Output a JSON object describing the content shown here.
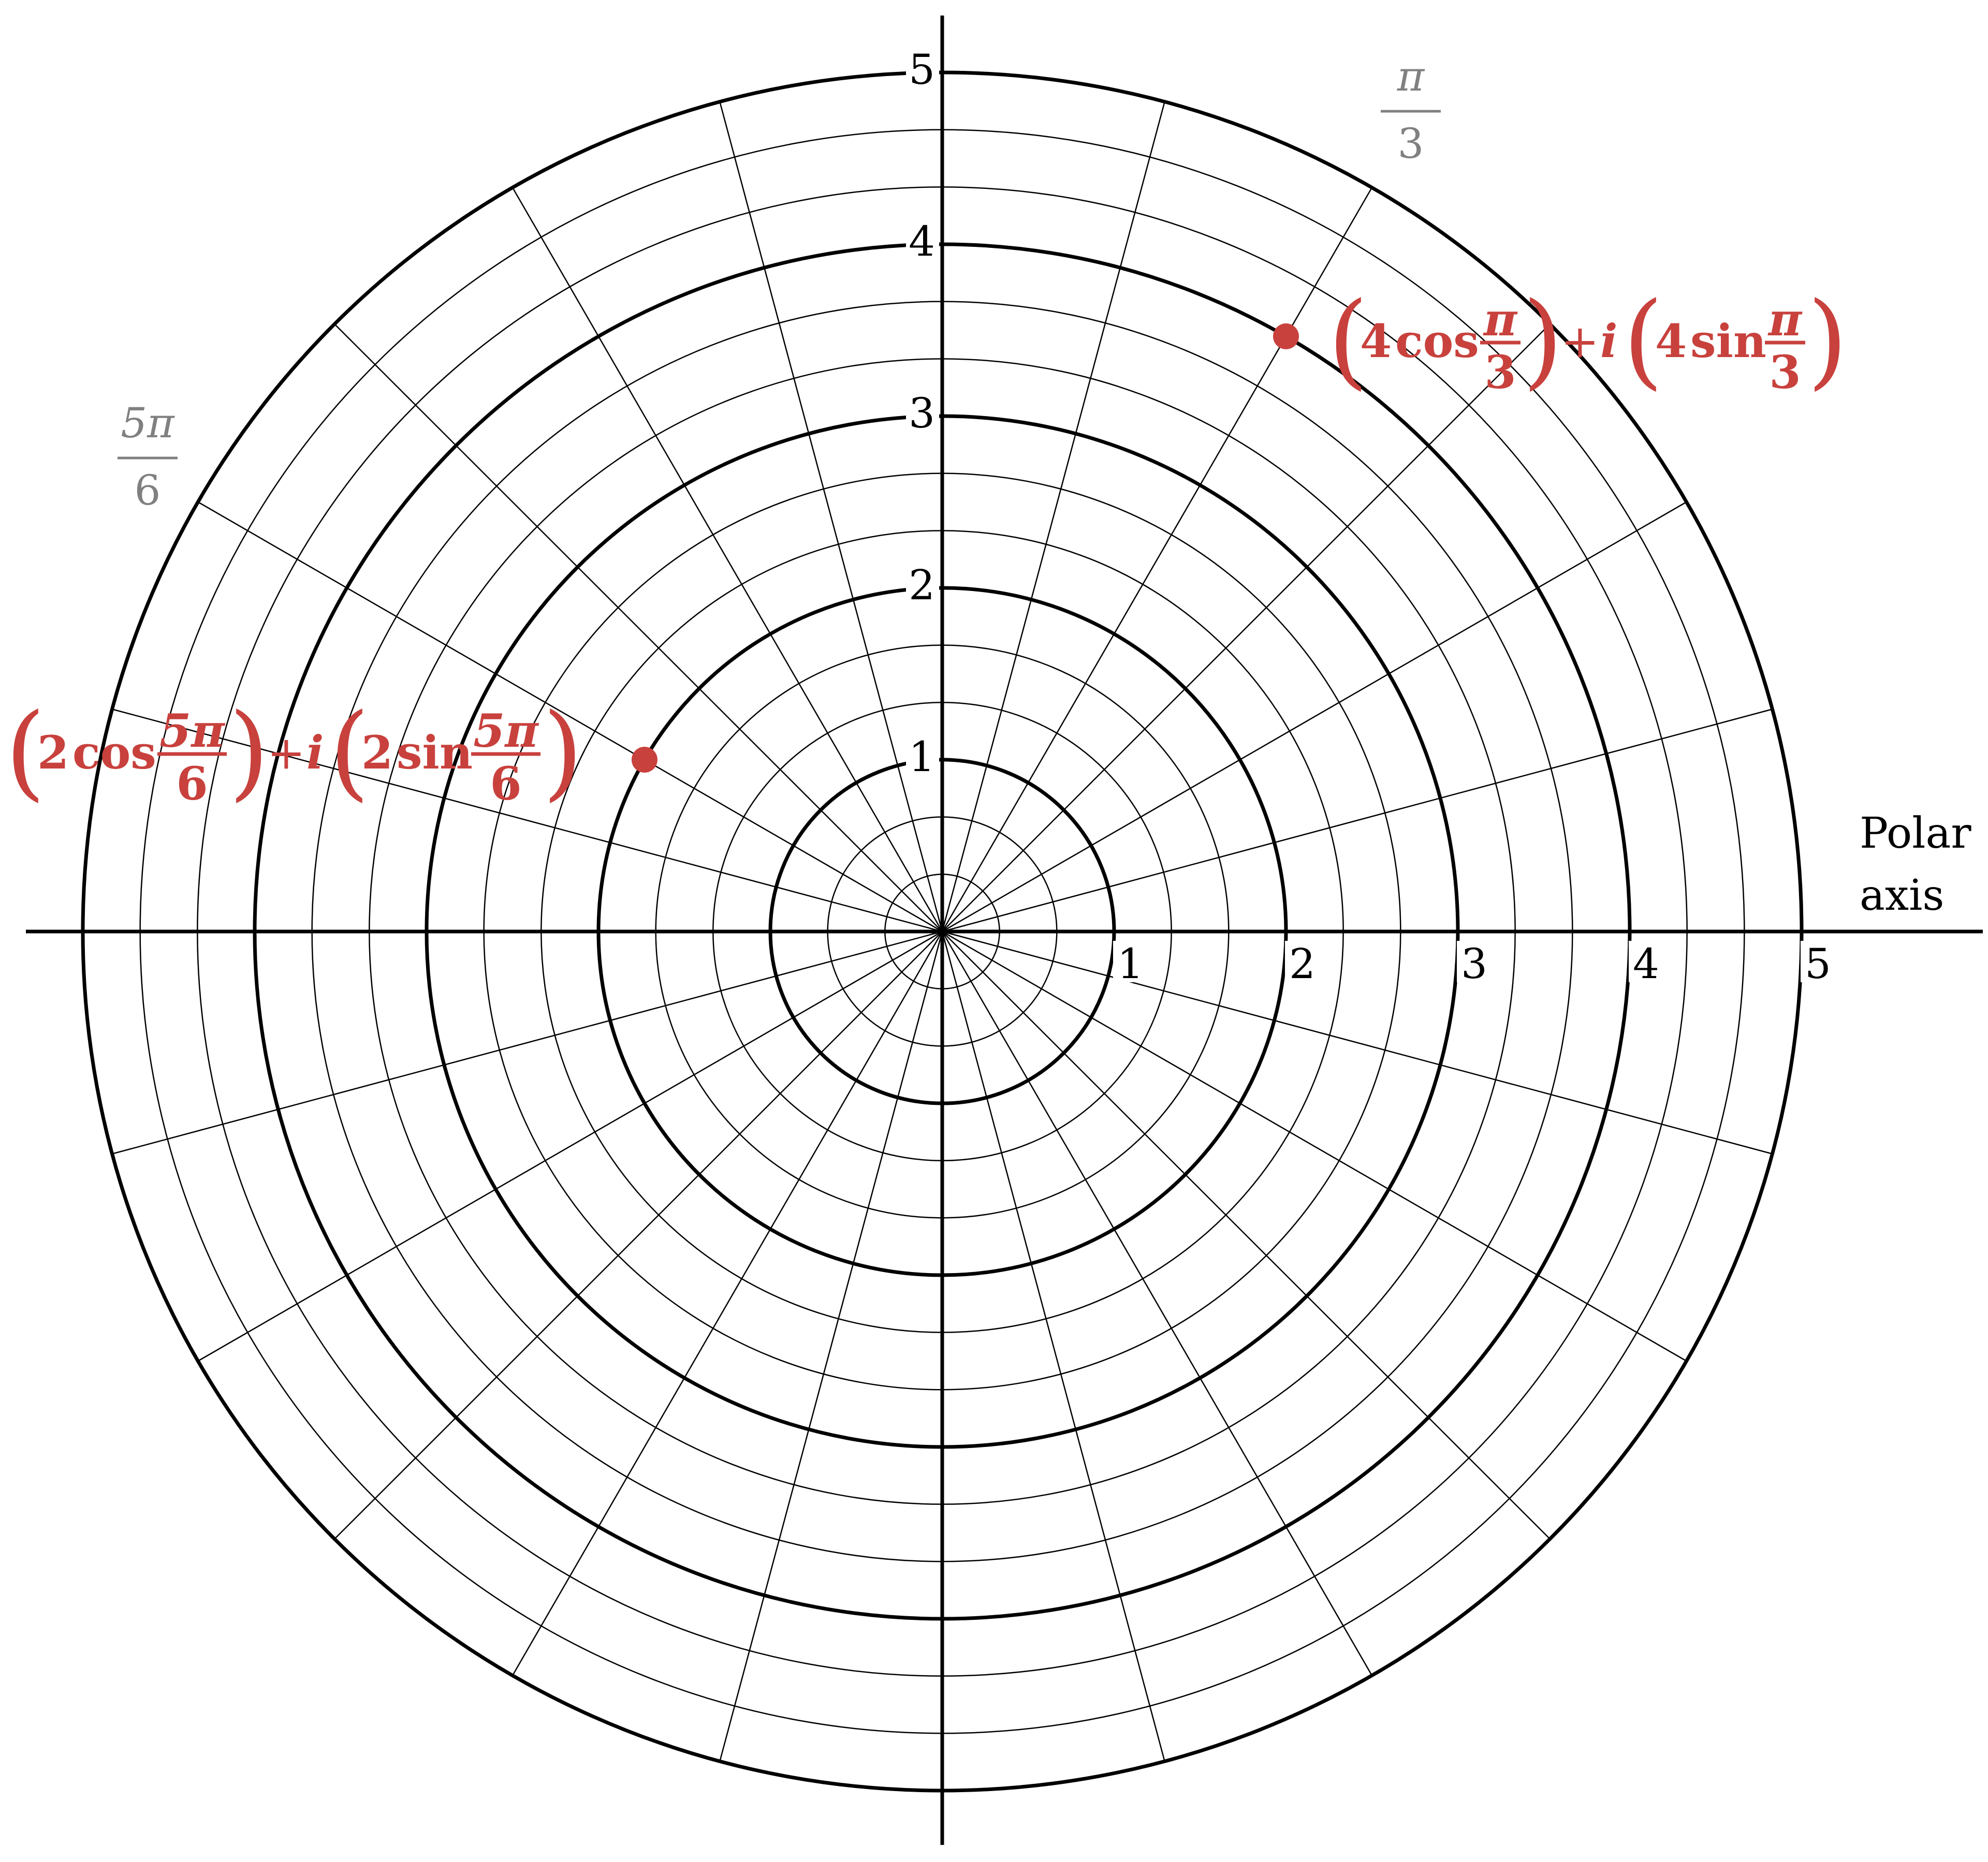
{
  "chart_data": {
    "type": "polar-grid",
    "r_max": 5,
    "r_major": [
      1,
      2,
      3,
      4,
      5
    ],
    "r_minor_step": 0.333,
    "theta_step_deg": 15,
    "r_tick_labels_x": [
      "1",
      "2",
      "3",
      "4",
      "5"
    ],
    "r_tick_labels_y": [
      "1",
      "2",
      "3",
      "4",
      "5"
    ],
    "axis_label": [
      "Polar",
      "axis"
    ],
    "angle_labels": [
      {
        "num": "π",
        "den": "3",
        "theta_deg": 60
      },
      {
        "num": "5π",
        "den": "6",
        "theta_deg": 150
      }
    ],
    "points": [
      {
        "r": 4,
        "theta_deg": 60,
        "label": {
          "coef": "4",
          "frac_num": "π",
          "frac_den": "3",
          "i": "i",
          "plus": "+",
          "cos": "cos",
          "sin": "sin"
        }
      },
      {
        "r": 2,
        "theta_deg": 150,
        "label": {
          "coef": "2",
          "frac_num": "5π",
          "frac_den": "6",
          "i": "i",
          "plus": "+",
          "cos": "cos",
          "sin": "sin"
        }
      }
    ]
  },
  "colors": {
    "grid": "#000000",
    "point": "#c8413d",
    "angle_label": "#808080"
  }
}
